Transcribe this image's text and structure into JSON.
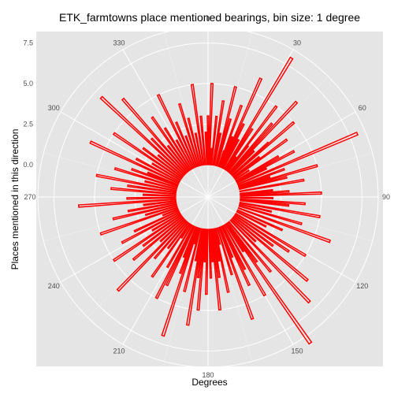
{
  "chart_data": {
    "type": "bar",
    "coord": "polar",
    "title": "ETK_farmtowns place mentioned bearings, bin size: 1 degree",
    "xlabel": "Degrees",
    "ylabel": "Places mentioned in this direction",
    "angle_ticks": [
      "0",
      "30",
      "60",
      "90",
      "120",
      "150",
      "180",
      "210",
      "240",
      "270",
      "300",
      "330"
    ],
    "radial_ticks": [
      "0.0",
      "2.5",
      "5.0",
      "7.5"
    ],
    "radial_tick_values": [
      0,
      2.5,
      5,
      7.5
    ],
    "rlim": [
      -2,
      8.5
    ],
    "grid": true,
    "bar_color": "#ff0000",
    "background": "#e5e5e5",
    "x": [
      0,
      2,
      4,
      6,
      9,
      11,
      14,
      16,
      19,
      20,
      22,
      24,
      26,
      28,
      31,
      33,
      35,
      37,
      38,
      41,
      43,
      45,
      48,
      49,
      52,
      54,
      57,
      60,
      62,
      64,
      67,
      70,
      72,
      74,
      76,
      80,
      84,
      86,
      88,
      91,
      94,
      96,
      100,
      103,
      106,
      110,
      114,
      117,
      121,
      124,
      127,
      130,
      133,
      136,
      140,
      143,
      145,
      147,
      150,
      153,
      155,
      158,
      160,
      163,
      166,
      168,
      170,
      172,
      174,
      176,
      178,
      181,
      183,
      185,
      187,
      189,
      191,
      194,
      196,
      198,
      200,
      202,
      205,
      207,
      210,
      213,
      215,
      218,
      221,
      224,
      227,
      230,
      233,
      236,
      239,
      242,
      245,
      248,
      251,
      254,
      257,
      260,
      263,
      266,
      269,
      272,
      275,
      278,
      281,
      284,
      287,
      290,
      292,
      295,
      298,
      301,
      304,
      307,
      310,
      313,
      316,
      319,
      322,
      325,
      328,
      331,
      334,
      337,
      340,
      343,
      346,
      349,
      352,
      355,
      358
    ],
    "y": [
      3,
      5,
      1,
      3,
      4,
      2,
      5,
      3,
      1,
      4,
      2,
      6,
      3,
      2,
      8,
      3,
      1,
      5,
      2,
      4,
      6,
      2,
      3,
      5,
      2,
      4,
      1,
      3,
      4,
      2,
      8,
      3,
      2,
      5,
      3,
      4,
      2,
      3,
      5,
      2,
      4,
      3,
      5,
      2,
      4,
      6,
      3,
      2,
      5,
      4,
      3,
      6,
      2,
      7,
      4,
      3,
      9,
      2,
      5,
      3,
      4,
      2,
      6,
      3,
      1,
      4,
      2,
      3,
      5,
      2,
      3,
      4,
      2,
      5,
      3,
      6,
      2,
      4,
      1,
      7,
      3,
      2,
      4,
      5,
      3,
      1,
      4,
      2,
      3,
      6,
      2,
      4,
      3,
      5,
      2,
      4,
      3,
      1,
      5,
      2,
      4,
      3,
      2,
      6,
      3,
      2,
      4,
      3,
      5,
      2,
      4,
      3,
      2,
      6,
      3,
      2,
      5,
      3,
      2,
      7,
      3,
      6,
      2,
      4,
      3,
      2,
      5,
      3,
      2,
      4,
      3,
      2,
      5,
      3,
      2
    ]
  }
}
